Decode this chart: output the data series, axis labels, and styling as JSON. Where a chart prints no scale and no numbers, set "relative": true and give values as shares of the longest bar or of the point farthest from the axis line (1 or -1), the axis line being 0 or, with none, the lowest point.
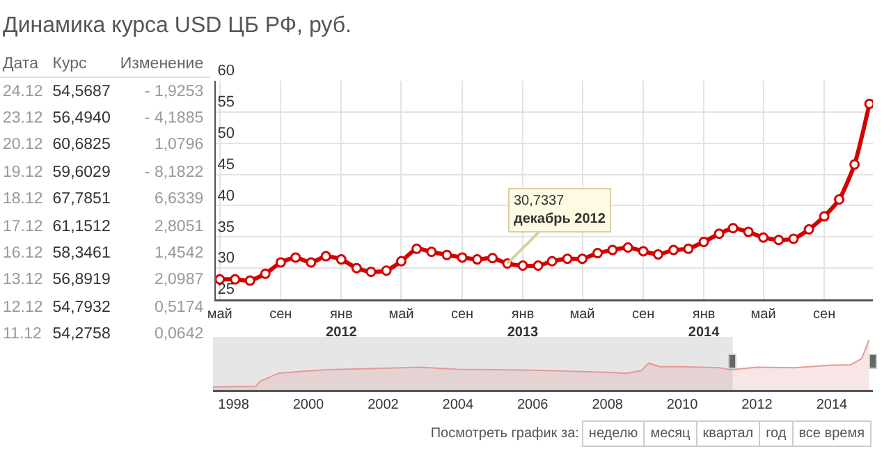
{
  "chart_data": [
    {
      "type": "other",
      "title": "Динамика курса USD ЦБ РФ, руб.",
      "annotations": [
        "Дата",
        "Курс",
        "Изменение",
        "24.12",
        "54,5687",
        "- 1,9253",
        "23.12",
        "56,4940",
        "- 4,1885",
        "20.12",
        "60,6825",
        "1,0796",
        "19.12",
        "59,6029",
        "- 8,1822",
        "18.12",
        "67,7851",
        "6,6339",
        "17.12",
        "61,1512",
        "2,8051",
        "16.12",
        "58,3461",
        "1,4542",
        "13.12",
        "56,8919",
        "2,0987",
        "12.12",
        "54,7932",
        "0,5174",
        "11.12",
        "54,2758",
        "0,0642"
      ]
    },
    {
      "type": "line",
      "grid": true,
      "marker": "circle",
      "xlim": [
        "2011-04-23",
        "2014-12-08"
      ],
      "ylim": [
        25,
        60
      ],
      "yticks": [
        25,
        30,
        35,
        40,
        45,
        50,
        55,
        60
      ],
      "xticks": [
        {
          "value": "2011-05",
          "label": "май"
        },
        {
          "value": "2011-09",
          "label": "сен"
        },
        {
          "value": "2012-01",
          "label": "янв\n2012"
        },
        {
          "value": "2012-05",
          "label": "май"
        },
        {
          "value": "2012-09",
          "label": "сен"
        },
        {
          "value": "2013-01",
          "label": "янв\n2013"
        },
        {
          "value": "2013-05",
          "label": "май"
        },
        {
          "value": "2013-09",
          "label": "сен"
        },
        {
          "value": "2014-01",
          "label": "янв\n2014"
        },
        {
          "value": "2014-05",
          "label": "май"
        },
        {
          "value": "2014-09",
          "label": "сен"
        }
      ],
      "annotations": [
        {
          "text": "30,7337\nдекабрь 2012",
          "x": "2012-12",
          "y": 30.7337
        }
      ],
      "x": [
        "2011-05",
        "2011-06",
        "2011-07",
        "2011-08",
        "2011-09",
        "2011-10",
        "2011-11",
        "2011-12",
        "2012-01",
        "2012-02",
        "2012-03",
        "2012-04",
        "2012-05",
        "2012-06",
        "2012-07",
        "2012-08",
        "2012-09",
        "2012-10",
        "2012-11",
        "2012-12",
        "2013-01",
        "2013-02",
        "2013-03",
        "2013-04",
        "2013-05",
        "2013-06",
        "2013-07",
        "2013-08",
        "2013-09",
        "2013-10",
        "2013-11",
        "2013-12",
        "2014-01",
        "2014-02",
        "2014-03",
        "2014-04",
        "2014-05",
        "2014-06",
        "2014-07",
        "2014-08",
        "2014-09",
        "2014-10",
        "2014-11",
        "2014-12"
      ],
      "series": [
        {
          "color": "#d40000",
          "values": [
            28.2,
            28.2,
            28.0,
            29.1,
            30.9,
            31.7,
            30.9,
            31.9,
            31.4,
            30.0,
            29.4,
            29.6,
            31.1,
            33.1,
            32.6,
            32.1,
            31.7,
            31.4,
            31.6,
            30.7337,
            30.4,
            30.4,
            31.1,
            31.5,
            31.5,
            32.4,
            32.9,
            33.3,
            32.7,
            32.2,
            32.9,
            33.1,
            34.2,
            35.5,
            36.4,
            35.8,
            34.9,
            34.5,
            34.7,
            36.2,
            38.3,
            41.0,
            46.6,
            56.3
          ]
        }
      ]
    },
    {
      "type": "area",
      "relative": true,
      "tick_labels": "x",
      "xlim": [
        1997.45,
        2015.1
      ],
      "xticks": [
        1998,
        2000,
        2002,
        2004,
        2006,
        2008,
        2010,
        2012,
        2014
      ],
      "bands": [
        {
          "axis": "x",
          "from": 1997.45,
          "to": 2011.35,
          "color": "#e6e6e6"
        }
      ],
      "annotations": [
        "Посмотреть график за:",
        "неделю",
        "месяц",
        "квартал",
        "год",
        "все время"
      ],
      "x": [
        1997.45,
        1998.6,
        1998.7,
        1999.2,
        1999.7,
        2000.5,
        2001.5,
        2002.5,
        2003.0,
        2004.0,
        2005.0,
        2006.0,
        2007.0,
        2008.0,
        2008.5,
        2008.9,
        2009.1,
        2009.4,
        2010.0,
        2011.0,
        2011.3,
        2012.0,
        2013.0,
        2014.0,
        2014.5,
        2014.8,
        2015.0
      ],
      "series": [
        {
          "color": "#e59a9a",
          "values": [
            0.06,
            0.07,
            0.17,
            0.33,
            0.36,
            0.4,
            0.42,
            0.44,
            0.45,
            0.41,
            0.4,
            0.39,
            0.37,
            0.35,
            0.33,
            0.38,
            0.53,
            0.46,
            0.46,
            0.44,
            0.4,
            0.45,
            0.44,
            0.49,
            0.5,
            0.62,
            1.0
          ]
        }
      ]
    }
  ]
}
